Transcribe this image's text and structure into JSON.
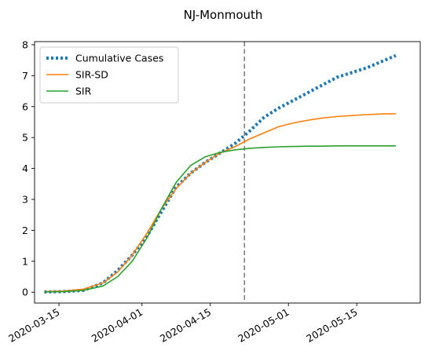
{
  "chart_data": {
    "type": "line",
    "title": "NJ-Monmouth",
    "xlabel": "",
    "ylabel": "",
    "x_axis_type": "date",
    "xlim": [
      "2020-03-10",
      "2020-05-28"
    ],
    "ylim": [
      -0.35,
      8.1
    ],
    "x_ticks": [
      "2020-03-15",
      "2020-04-01",
      "2020-04-15",
      "2020-05-01",
      "2020-05-15"
    ],
    "y_ticks": [
      0,
      1,
      2,
      3,
      4,
      5,
      6,
      7,
      8
    ],
    "grid": false,
    "legend_position": "top-left",
    "vertical_marker": {
      "x": "2020-04-22",
      "style": "dashed",
      "color": "#7f7f7f"
    },
    "series": [
      {
        "name": "Cumulative Cases",
        "style": "dotted",
        "color": "#1f77b4",
        "points": [
          [
            "2020-03-12",
            0.01
          ],
          [
            "2020-03-16",
            0.02
          ],
          [
            "2020-03-20",
            0.06
          ],
          [
            "2020-03-24",
            0.3
          ],
          [
            "2020-03-27",
            0.7
          ],
          [
            "2020-03-30",
            1.2
          ],
          [
            "2020-04-02",
            1.8
          ],
          [
            "2020-04-05",
            2.6
          ],
          [
            "2020-04-08",
            3.4
          ],
          [
            "2020-04-11",
            3.85
          ],
          [
            "2020-04-14",
            4.2
          ],
          [
            "2020-04-17",
            4.5
          ],
          [
            "2020-04-20",
            4.8
          ],
          [
            "2020-04-23",
            5.2
          ],
          [
            "2020-04-26",
            5.65
          ],
          [
            "2020-04-29",
            5.95
          ],
          [
            "2020-05-02",
            6.2
          ],
          [
            "2020-05-05",
            6.45
          ],
          [
            "2020-05-08",
            6.7
          ],
          [
            "2020-05-11",
            6.95
          ],
          [
            "2020-05-14",
            7.1
          ],
          [
            "2020-05-17",
            7.25
          ],
          [
            "2020-05-20",
            7.45
          ],
          [
            "2020-05-23",
            7.65
          ]
        ]
      },
      {
        "name": "SIR-SD",
        "style": "solid",
        "color": "#ff7f0e",
        "points": [
          [
            "2020-03-12",
            0.02
          ],
          [
            "2020-03-16",
            0.04
          ],
          [
            "2020-03-20",
            0.1
          ],
          [
            "2020-03-24",
            0.3
          ],
          [
            "2020-03-27",
            0.65
          ],
          [
            "2020-03-30",
            1.2
          ],
          [
            "2020-04-02",
            1.9
          ],
          [
            "2020-04-05",
            2.7
          ],
          [
            "2020-04-08",
            3.35
          ],
          [
            "2020-04-11",
            3.85
          ],
          [
            "2020-04-14",
            4.2
          ],
          [
            "2020-04-17",
            4.5
          ],
          [
            "2020-04-20",
            4.7
          ],
          [
            "2020-04-23",
            4.95
          ],
          [
            "2020-04-26",
            5.15
          ],
          [
            "2020-04-29",
            5.35
          ],
          [
            "2020-05-02",
            5.47
          ],
          [
            "2020-05-05",
            5.56
          ],
          [
            "2020-05-08",
            5.63
          ],
          [
            "2020-05-11",
            5.68
          ],
          [
            "2020-05-14",
            5.71
          ],
          [
            "2020-05-17",
            5.74
          ],
          [
            "2020-05-20",
            5.76
          ],
          [
            "2020-05-23",
            5.77
          ]
        ]
      },
      {
        "name": "SIR",
        "style": "solid",
        "color": "#2ca02c",
        "points": [
          [
            "2020-03-12",
            0.01
          ],
          [
            "2020-03-16",
            0.02
          ],
          [
            "2020-03-20",
            0.06
          ],
          [
            "2020-03-24",
            0.2
          ],
          [
            "2020-03-27",
            0.5
          ],
          [
            "2020-03-30",
            1.0
          ],
          [
            "2020-04-02",
            1.75
          ],
          [
            "2020-04-05",
            2.7
          ],
          [
            "2020-04-08",
            3.55
          ],
          [
            "2020-04-11",
            4.1
          ],
          [
            "2020-04-14",
            4.38
          ],
          [
            "2020-04-17",
            4.52
          ],
          [
            "2020-04-20",
            4.6
          ],
          [
            "2020-04-23",
            4.65
          ],
          [
            "2020-04-26",
            4.68
          ],
          [
            "2020-04-29",
            4.7
          ],
          [
            "2020-05-02",
            4.71
          ],
          [
            "2020-05-05",
            4.72
          ],
          [
            "2020-05-08",
            4.72
          ],
          [
            "2020-05-11",
            4.73
          ],
          [
            "2020-05-14",
            4.73
          ],
          [
            "2020-05-17",
            4.73
          ],
          [
            "2020-05-20",
            4.73
          ],
          [
            "2020-05-23",
            4.73
          ]
        ]
      }
    ]
  }
}
